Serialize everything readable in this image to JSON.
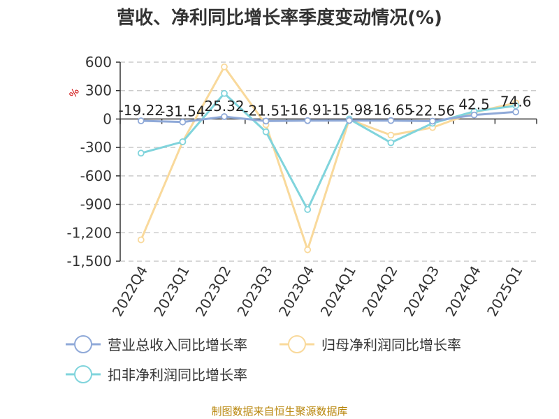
{
  "title": "营收、净利同比增长率季度变动情况(%)",
  "unit": "%",
  "source": "制图数据来自恒生聚源数据库",
  "chart_data": {
    "type": "line",
    "title": "营收、净利同比增长率季度变动情况(%)",
    "ylabel": "%",
    "ylim": [
      -1500,
      600
    ],
    "yticks": [
      600,
      300,
      0,
      -300,
      -600,
      -900,
      -1200,
      -1500
    ],
    "ytick_labels": [
      "600",
      "300",
      "0",
      "-300",
      "-600",
      "-900",
      "-1,200",
      "-1,500"
    ],
    "grid": true,
    "legend_position": "bottom",
    "categories": [
      "2022Q4",
      "2023Q1",
      "2023Q2",
      "2023Q3",
      "2023Q4",
      "2024Q1",
      "2024Q2",
      "2024Q3",
      "2024Q4",
      "2025Q1"
    ],
    "series": [
      {
        "name": "营业总收入同比增长率",
        "color": "#8fa9d8",
        "values": [
          -19.22,
          -31.54,
          25.32,
          -21.51,
          -16.91,
          -15.98,
          -16.65,
          -22.56,
          42.5,
          74.6
        ],
        "labels": [
          "-19.22",
          "-31.54",
          "25.32",
          "-21.51",
          "-16.91",
          "-15.98",
          "-16.65",
          "-22.56",
          "42.5",
          "74.6"
        ]
      },
      {
        "name": "归母净利润同比增长率",
        "color": "#f9d99b",
        "values": [
          -1275,
          -240,
          550,
          -60,
          -1380,
          -5,
          -170,
          -90,
          70,
          170
        ]
      },
      {
        "name": "扣非净利润同比增长率",
        "color": "#80d4dc",
        "values": [
          -360,
          -240,
          270,
          -135,
          -955,
          0,
          -250,
          -45,
          80,
          140
        ]
      }
    ]
  }
}
